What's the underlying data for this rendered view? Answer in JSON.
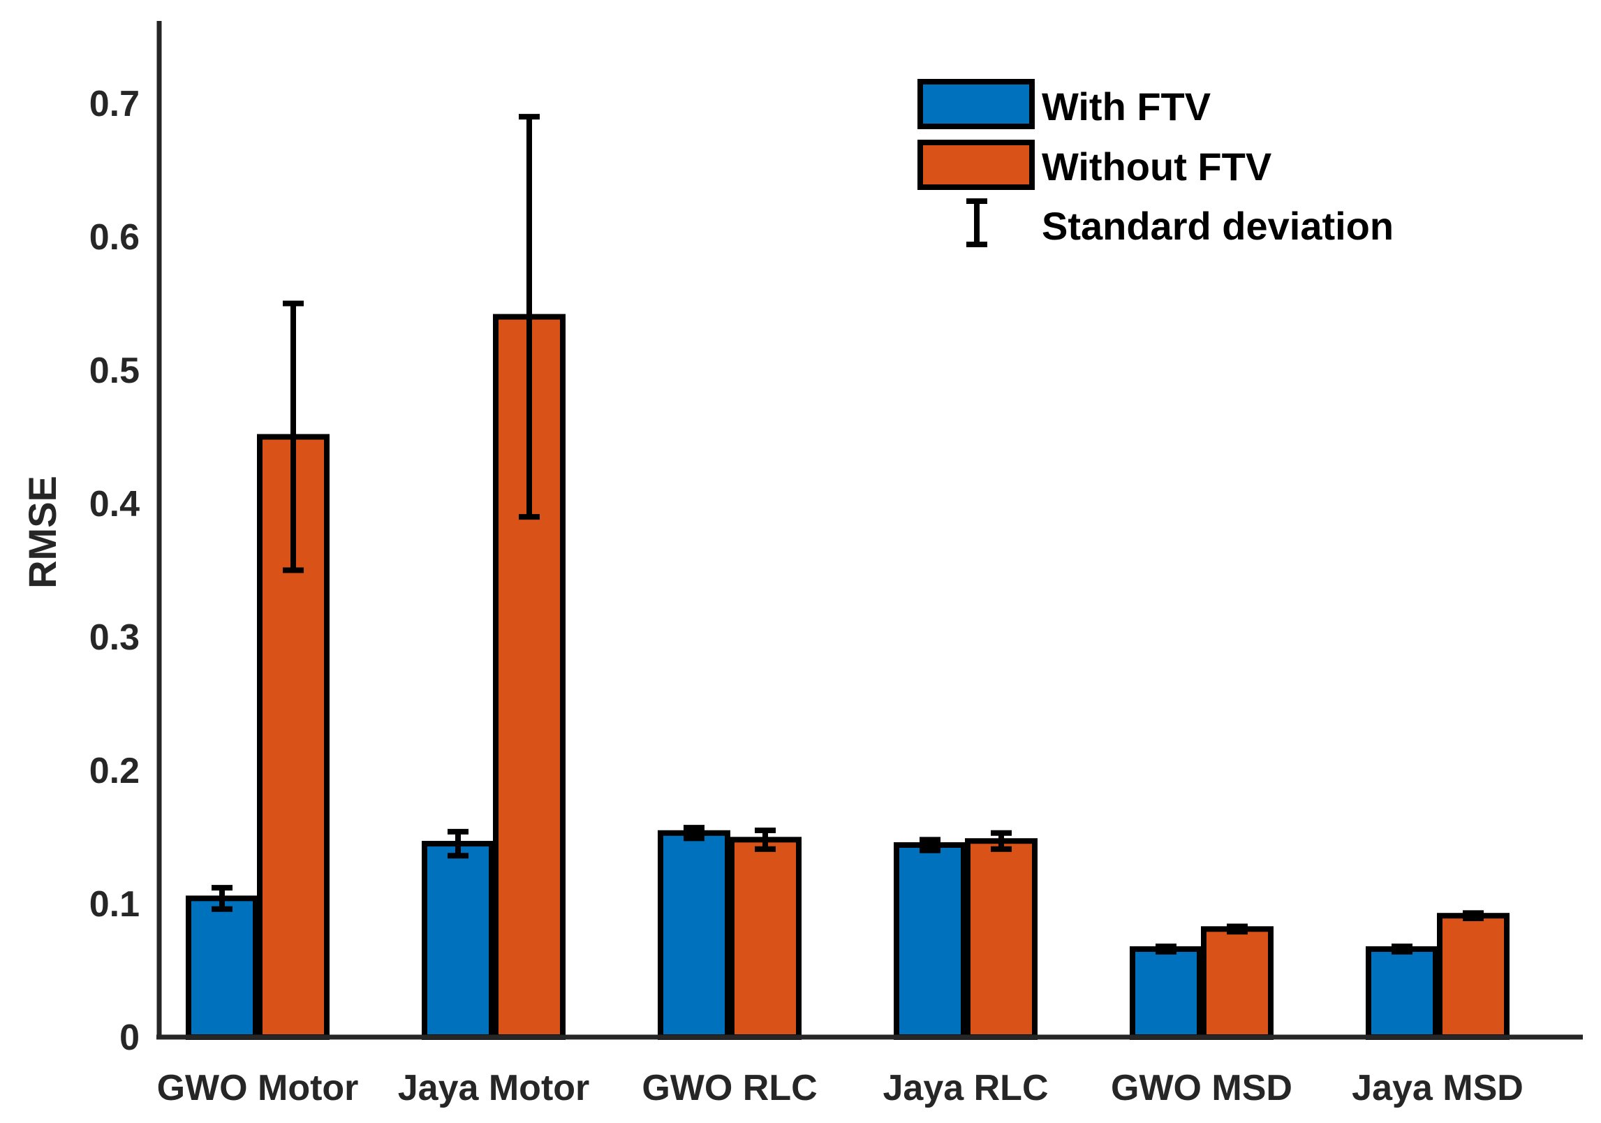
{
  "chart_data": {
    "type": "bar",
    "title": "",
    "xlabel": "",
    "ylabel": "RMSE",
    "ylim": [
      0,
      0.76
    ],
    "yticks": [
      0,
      0.1,
      0.2,
      0.3,
      0.4,
      0.5,
      0.6,
      0.7
    ],
    "ytick_labels": [
      "0",
      "0.1",
      "0.2",
      "0.3",
      "0.4",
      "0.5",
      "0.6",
      "0.7"
    ],
    "grid": false,
    "legend_position": "top-right",
    "categories": [
      "GWO Motor",
      "Jaya Motor",
      "GWO RLC",
      "Jaya RLC",
      "GWO MSD",
      "Jaya MSD"
    ],
    "series": [
      {
        "name": "With FTV",
        "color": "#0072BD",
        "values": [
          0.104,
          0.145,
          0.153,
          0.144,
          0.066,
          0.066
        ],
        "errors": [
          0.008,
          0.009,
          0.004,
          0.004,
          0.002,
          0.002
        ]
      },
      {
        "name": "Without FTV",
        "color": "#D95319",
        "values": [
          0.45,
          0.54,
          0.148,
          0.147,
          0.081,
          0.091
        ],
        "errors": [
          0.1,
          0.15,
          0.007,
          0.006,
          0.002,
          0.002
        ]
      }
    ],
    "error_bar_label": "Standard deviation"
  },
  "colors": {
    "axis": "#262626",
    "bar_edge": "#000000",
    "error_bar": "#000000"
  }
}
